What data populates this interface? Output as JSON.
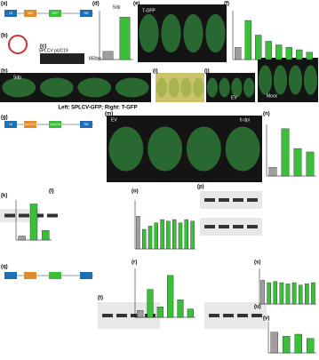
{
  "figure": {
    "panel_labels": [
      "(a)",
      "(b)",
      "(c)",
      "(d)",
      "(e)",
      "(f)",
      "(g)",
      "(h)",
      "(i)",
      "(j)",
      "(k)",
      "(l)",
      "(m)",
      "(n)",
      "(o)",
      "(p)",
      "(q)",
      "(r)",
      "(s)",
      "(t)",
      "(u)",
      "(v)"
    ],
    "caption_h": "Left: SPLCV-GFP; Right: T-GFP",
    "gel_label": "SPLCV pUC19",
    "gel_size": "850bp",
    "construct_labels": [
      "LB",
      "35S",
      "GFP",
      "RB",
      "LB",
      "CmYLCV",
      "Cas12a",
      "RB"
    ],
    "photo_labels": [
      "T-GFP",
      "Sdp",
      "EV",
      "Mock",
      "EV",
      "6 dpi"
    ],
    "charts": [
      {
        "type": "bar",
        "title": "Sdp",
        "values": [
          1,
          5.2
        ],
        "ylim": [
          0,
          6
        ],
        "colors": [
          "#9e9e9e",
          "#3bbf3b"
        ]
      },
      {
        "type": "bar",
        "values": [
          1,
          3.2,
          2.0,
          1.5,
          1.2,
          1.0,
          0.8,
          0.6
        ],
        "ylim": [
          0,
          4
        ],
        "colors": [
          "#9e9e9e",
          "#3bbf3b"
        ]
      },
      {
        "type": "bar",
        "values": [
          1,
          5.5,
          3.2,
          2.8
        ],
        "ylim": [
          0,
          6
        ],
        "colors": [
          "#9e9e9e",
          "#3bbf3b"
        ]
      },
      {
        "type": "bar",
        "values": [
          0.5,
          4.5,
          1.2
        ],
        "ylim": [
          0,
          5
        ],
        "colors": [
          "#9e9e9e",
          "#3bbf3b"
        ]
      },
      {
        "type": "bar",
        "values": [
          1,
          0.6,
          0.7,
          0.8,
          0.9,
          0.85,
          0.9,
          0.8,
          0.9,
          0.85
        ],
        "ylim": [
          0,
          1.5
        ],
        "colors": [
          "#9e9e9e",
          "#3bbf3b"
        ]
      },
      {
        "type": "bar",
        "values": [
          1,
          4,
          1.5,
          6,
          2.5,
          1.2
        ],
        "ylim": [
          0,
          7
        ],
        "colors": [
          "#9e9e9e",
          "#3bbf3b"
        ]
      },
      {
        "type": "bar",
        "values": [
          1,
          0.9,
          0.95,
          0.9,
          0.85,
          0.9,
          0.8,
          0.85,
          0.9
        ],
        "ylim": [
          0,
          1.5
        ],
        "colors": [
          "#9e9e9e",
          "#3bbf3b"
        ]
      },
      {
        "type": "bar",
        "values": [
          1,
          0.8,
          0.9,
          0.7
        ],
        "ylim": [
          0,
          1.5
        ],
        "colors": [
          "#9e9e9e",
          "#3bbf3b"
        ]
      }
    ]
  }
}
